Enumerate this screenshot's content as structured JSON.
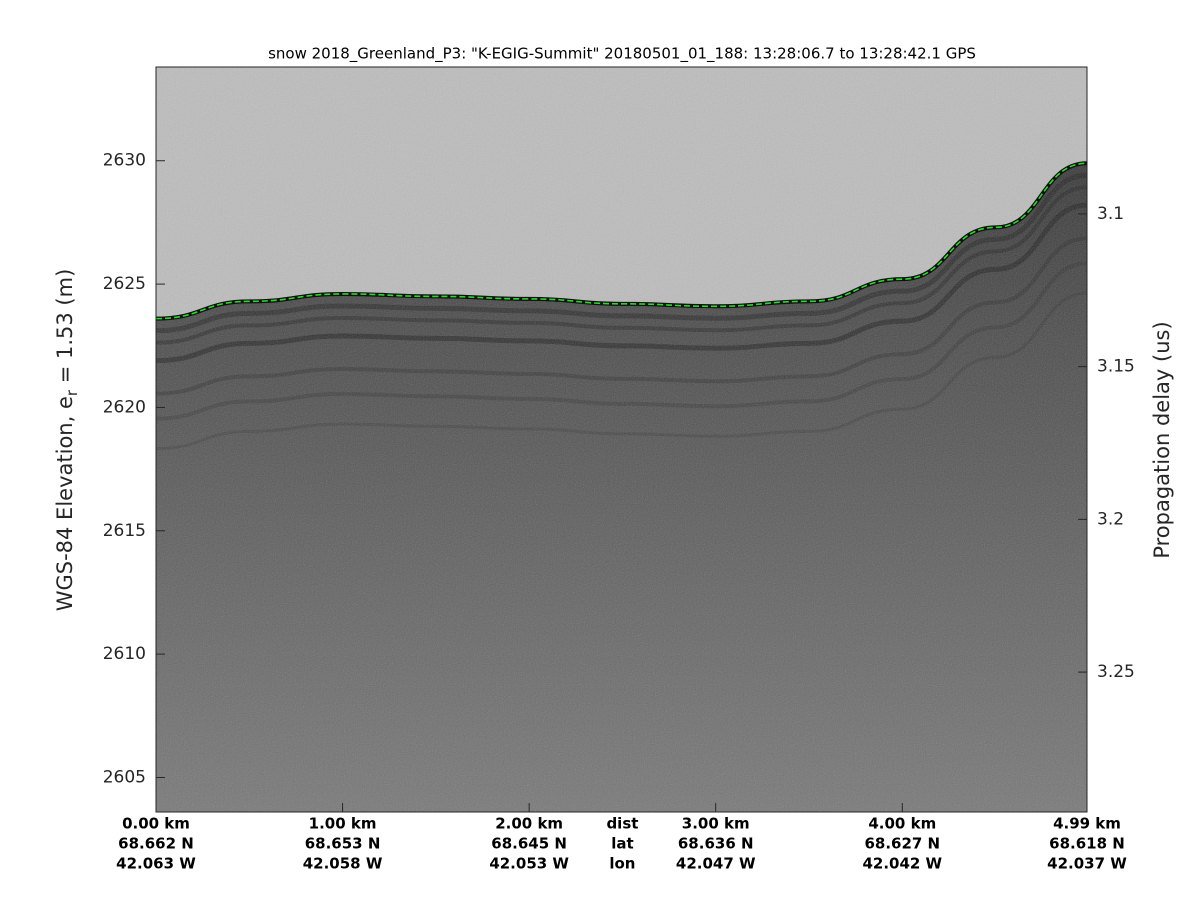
{
  "chart_data": {
    "type": "line",
    "title": "snow 2018_Greenland_P3: \"K-EGIG-Summit\"  20180501_01_188: 13:28:06.7 to 13:28:42.1 GPS",
    "ylabel": "WGS-84 Elevation, e",
    "ylabel_sub": "r",
    "ylabel_rest": " = 1.53 (m)",
    "y2label": "Propagation delay (us)",
    "xlim": [
      0,
      4.99
    ],
    "ylim": [
      2603.6,
      2633.8
    ],
    "y2lim": [
      3.0519,
      3.2958
    ],
    "yticks": [
      2605,
      2610,
      2615,
      2620,
      2625,
      2630
    ],
    "y2ticks": [
      3.1,
      3.15,
      3.2,
      3.25
    ],
    "xticks": [
      {
        "value": 0,
        "label": "0.00 km"
      },
      {
        "value": 1,
        "label": "1.00 km"
      },
      {
        "value": 2,
        "label": "2.00 km"
      },
      {
        "value": 3,
        "label": "3.00 km"
      },
      {
        "value": 4,
        "label": "4.00 km"
      },
      {
        "value": 4.99,
        "label": "4.99 km"
      }
    ],
    "xtick_lat": [
      "68.662 N",
      "68.653 N",
      "68.645 N",
      "68.636 N",
      "68.627 N",
      "68.618 N"
    ],
    "xtick_lon": [
      "42.063 W",
      "42.058 W",
      "42.053 W",
      "42.047 W",
      "42.042 W",
      "42.037 W"
    ],
    "xrow_titles": [
      "dist",
      "lat",
      "lon"
    ],
    "x": [
      0,
      0.5,
      1,
      1.5,
      2,
      2.5,
      3,
      3.5,
      4,
      4.5,
      4.99
    ],
    "series": [
      {
        "color": "#22dd22",
        "values": [
          2623.6,
          2624.3,
          2624.6,
          2624.5,
          2624.4,
          2624.2,
          2624.1,
          2624.3,
          2625.2,
          2627.3,
          2629.9
        ]
      }
    ]
  }
}
